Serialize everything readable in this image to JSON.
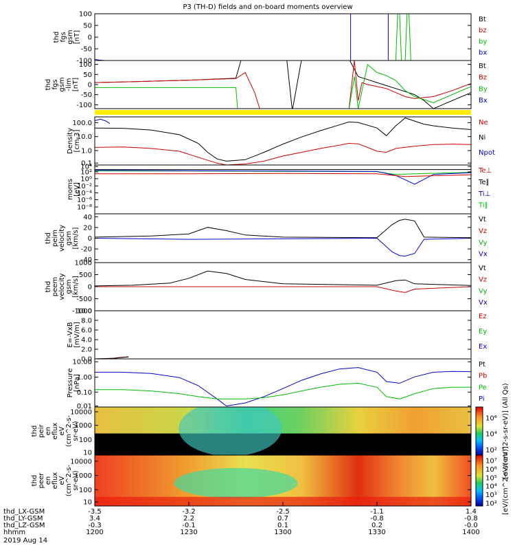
{
  "title": "P3 (TH-D) fields and on-board moments overview",
  "chart_data": [
    {
      "type": "line",
      "id": "fgs",
      "ylabel": [
        "thd",
        "fgs",
        "gsm",
        "[nT]"
      ],
      "ylim": [
        -100,
        100
      ],
      "yticks": [
        "100",
        "50",
        "0",
        "-50",
        "-100"
      ],
      "legend": [
        {
          "name": "Bt",
          "color": "#000000"
        },
        {
          "name": "bz",
          "color": "#cc0000"
        },
        {
          "name": "by",
          "color": "#00bb00"
        },
        {
          "name": "bx",
          "color": "#0000cc"
        }
      ],
      "series": [
        {
          "name": "bx",
          "color": "#0000cc",
          "x": [
            12.0,
            12.02,
            12.05,
            12.3,
            12.6,
            13.0,
            13.2,
            13.3,
            13.35,
            13.36,
            13.36,
            13.5,
            13.55,
            13.56,
            13.56,
            13.9,
            14.0
          ],
          "y": [
            -95,
            -98,
            -100,
            -100,
            -100,
            -100,
            -100,
            -100,
            -100,
            -100,
            100,
            100,
            100,
            100,
            -100,
            -100,
            -100
          ]
        },
        {
          "name": "by",
          "color": "#00bb00",
          "x": [
            13.6,
            13.61,
            13.62,
            13.63,
            13.65,
            13.66,
            13.67,
            13.68,
            13.69,
            13.7
          ],
          "y": [
            -100,
            100,
            100,
            -100,
            -100,
            100,
            100,
            -100,
            -100,
            -100
          ]
        }
      ]
    },
    {
      "type": "line",
      "id": "fgs_lim",
      "ylabel": [
        "thd",
        "fgs",
        "gsm",
        "-lim",
        "[nT]"
      ],
      "ylim": [
        -120,
        120
      ],
      "yticks": [
        "100",
        "50",
        "0",
        "-50",
        "-100"
      ],
      "legend": [
        {
          "name": "Bt",
          "color": "#000000"
        },
        {
          "name": "Bz",
          "color": "#cc0000"
        },
        {
          "name": "By",
          "color": "#00bb00"
        },
        {
          "name": "Bx",
          "color": "#0000cc"
        }
      ],
      "series": [
        {
          "name": "Bt",
          "color": "#000000",
          "x": [
            12.0,
            12.2,
            12.5,
            12.75,
            12.78,
            13.0,
            13.02,
            13.05,
            13.1,
            13.3,
            13.35,
            13.4,
            13.45,
            13.5,
            13.6,
            13.7,
            13.75,
            13.8,
            13.9,
            14.0
          ],
          "y": [
            10,
            14,
            22,
            32,
            130,
            130,
            130,
            -130,
            130,
            130,
            130,
            40,
            25,
            10,
            -20,
            -50,
            -80,
            -120,
            -80,
            -40
          ]
        },
        {
          "name": "Bz",
          "color": "#cc0000",
          "x": [
            12.0,
            12.2,
            12.5,
            12.75,
            12.8,
            12.85,
            12.88,
            13.3,
            13.35,
            13.38,
            13.4,
            13.42,
            13.45,
            13.5,
            13.55,
            13.6,
            13.65,
            13.7,
            13.8,
            13.9,
            14.0
          ],
          "y": [
            10,
            14,
            22,
            30,
            60,
            -40,
            -130,
            -130,
            -130,
            120,
            -80,
            10,
            0,
            -10,
            -20,
            -40,
            -60,
            -70,
            -60,
            -30,
            5
          ]
        },
        {
          "name": "By",
          "color": "#00bb00",
          "x": [
            12.0,
            12.5,
            12.75,
            12.76,
            13.3,
            13.35,
            13.38,
            13.4,
            13.45,
            13.5,
            13.55,
            13.6,
            13.65,
            13.7,
            13.8,
            13.9,
            14.0
          ],
          "y": [
            -15,
            -15,
            -15,
            -130,
            -130,
            -130,
            40,
            -120,
            100,
            60,
            45,
            20,
            -30,
            -60,
            -90,
            -50,
            -10
          ]
        }
      ]
    },
    {
      "type": "line",
      "id": "density",
      "ylabel": [
        "Density",
        "[cm-3]"
      ],
      "scale": "log",
      "ylim": [
        0.05,
        300
      ],
      "yticks": [
        "100.0",
        "10.0",
        "1.0",
        "0.1"
      ],
      "legend": [
        {
          "name": "Ne",
          "color": "#cc0000"
        },
        {
          "name": "Ni",
          "color": "#000000"
        },
        {
          "name": "Npot",
          "color": "#0000cc"
        }
      ],
      "series": [
        {
          "name": "Ni",
          "color": "#000000",
          "x": [
            12.0,
            12.15,
            12.3,
            12.45,
            12.55,
            12.6,
            12.65,
            12.7,
            12.8,
            12.9,
            13.0,
            13.1,
            13.2,
            13.3,
            13.35,
            13.4,
            13.5,
            13.55,
            13.6,
            13.65,
            13.7,
            13.75,
            13.8,
            13.9,
            14.0
          ],
          "y": [
            40,
            38,
            28,
            12,
            2.5,
            0.5,
            0.15,
            0.1,
            0.13,
            0.5,
            2.2,
            8,
            25,
            70,
            120,
            110,
            40,
            10,
            60,
            250,
            140,
            80,
            60,
            40,
            30
          ]
        },
        {
          "name": "Ne",
          "color": "#cc0000",
          "x": [
            12.0,
            12.15,
            12.3,
            12.45,
            12.55,
            12.65,
            12.7,
            12.8,
            12.9,
            13.0,
            13.1,
            13.2,
            13.3,
            13.35,
            13.4,
            13.45,
            13.5,
            13.55,
            13.6,
            13.7,
            13.8,
            13.9,
            14.0
          ],
          "y": [
            1.2,
            1.3,
            1.0,
            0.6,
            0.2,
            0.07,
            0.05,
            0.06,
            0.1,
            0.25,
            0.5,
            1.0,
            1.8,
            2.5,
            2.3,
            1.2,
            0.6,
            0.5,
            1.0,
            1.5,
            2.0,
            2.2,
            2.0
          ]
        },
        {
          "name": "Npot",
          "color": "#0000cc",
          "x": [
            12.0,
            12.03,
            12.06,
            12.08
          ],
          "y": [
            150,
            200,
            140,
            90
          ]
        }
      ]
    },
    {
      "type": "line",
      "id": "moms",
      "ylabel": [
        "moms",
        "[eV]"
      ],
      "scale": "log",
      "ylim": [
        1e-09,
        100000.0
      ],
      "yticks": [
        "10⁴",
        "10²",
        "10⁰",
        "10⁻²",
        "10⁻⁴",
        "10⁻⁶",
        "10⁻⁸"
      ],
      "legend": [
        {
          "name": "Te⊥",
          "color": "#cc0000"
        },
        {
          "name": "Te∥",
          "color": "#000000"
        },
        {
          "name": "Ti⊥",
          "color": "#0000cc"
        },
        {
          "name": "Ti∥",
          "color": "#00bb00"
        }
      ],
      "series": [
        {
          "name": "Ti∥",
          "color": "#00bb00",
          "x": [
            12.0,
            12.5,
            13.0,
            13.5,
            13.6,
            13.7,
            14.0
          ],
          "y": [
            2000,
            1800,
            1500,
            1200,
            200,
            300,
            800
          ]
        },
        {
          "name": "Ti⊥",
          "color": "#0000cc",
          "x": [
            12.0,
            12.5,
            13.0,
            13.5,
            13.6,
            13.7,
            13.8,
            14.0
          ],
          "y": [
            3000,
            2200,
            1800,
            1400,
            100,
            0.3,
            200,
            600
          ]
        },
        {
          "name": "Te⊥",
          "color": "#cc0000",
          "x": [
            12.0,
            12.5,
            13.0,
            13.5,
            13.65,
            14.0
          ],
          "y": [
            300,
            300,
            400,
            300,
            50,
            150
          ]
        },
        {
          "name": "Te∥",
          "color": "#000000",
          "x": [
            12.0,
            12.5,
            13.0,
            13.5,
            14.0
          ],
          "y": [
            5000,
            5000,
            5000,
            5000,
            5000
          ]
        }
      ]
    },
    {
      "type": "line",
      "id": "peim",
      "ylabel": [
        "thd",
        "peim",
        "velocity",
        "gsm",
        "[km/s]"
      ],
      "ylim": [
        -45,
        45
      ],
      "yticks": [
        "40",
        "20",
        "0",
        "-20",
        "-40"
      ],
      "legend": [
        {
          "name": "Vt",
          "color": "#000000"
        },
        {
          "name": "Vz",
          "color": "#cc0000"
        },
        {
          "name": "Vy",
          "color": "#00bb00"
        },
        {
          "name": "Vx",
          "color": "#0000cc"
        }
      ],
      "series": [
        {
          "name": "Vt",
          "color": "#000000",
          "x": [
            12.0,
            12.3,
            12.5,
            12.6,
            12.7,
            12.8,
            13.0,
            13.5,
            13.58,
            13.62,
            13.65,
            13.7,
            13.75,
            14.0
          ],
          "y": [
            2,
            4,
            8,
            20,
            14,
            6,
            2,
            1,
            25,
            33,
            35,
            32,
            2,
            1
          ]
        },
        {
          "name": "Vx",
          "color": "#0000cc",
          "x": [
            12.0,
            12.5,
            13.5,
            13.58,
            13.62,
            13.65,
            13.7,
            13.75,
            14.0
          ],
          "y": [
            0,
            -2,
            0,
            -25,
            -32,
            -33,
            -28,
            -2,
            0
          ]
        }
      ]
    },
    {
      "type": "line",
      "id": "peem",
      "ylabel": [
        "thd",
        "peem",
        "velocity",
        "gsm",
        "[km/s]"
      ],
      "ylim": [
        -1000,
        1000
      ],
      "yticks": [
        "1000",
        "500",
        "0",
        "-500",
        "-1000"
      ],
      "legend": [
        {
          "name": "Vt",
          "color": "#000000"
        },
        {
          "name": "Vz",
          "color": "#cc0000"
        },
        {
          "name": "Vy",
          "color": "#00bb00"
        },
        {
          "name": "Vx",
          "color": "#0000cc"
        }
      ],
      "series": [
        {
          "name": "Vt",
          "color": "#000000",
          "x": [
            12.0,
            12.2,
            12.4,
            12.5,
            12.6,
            12.7,
            12.8,
            13.0,
            13.5,
            13.6,
            13.65,
            13.7,
            14.0
          ],
          "y": [
            30,
            60,
            150,
            350,
            650,
            550,
            300,
            120,
            60,
            250,
            280,
            120,
            50
          ]
        },
        {
          "name": "Vz",
          "color": "#cc0000",
          "x": [
            12.0,
            13.5,
            13.6,
            13.65,
            13.7,
            14.0
          ],
          "y": [
            0,
            0,
            -180,
            -240,
            -100,
            0
          ]
        }
      ]
    },
    {
      "type": "line",
      "id": "efield",
      "ylabel": [
        "E=-VxB",
        "[mV/m]"
      ],
      "ylim": [
        0,
        10
      ],
      "yticks": [
        "10.0",
        "8.0",
        "6.0",
        "4.0",
        "2.0",
        "0.0"
      ],
      "legend": [
        {
          "name": "Ez",
          "color": "#cc0000"
        },
        {
          "name": "Ey",
          "color": "#00bb00"
        },
        {
          "name": "Ex",
          "color": "#0000cc"
        }
      ],
      "series": [
        {
          "name": "Ez",
          "color": "#cc0000",
          "x": [
            12.0,
            12.05,
            12.1,
            12.15,
            12.18
          ],
          "y": [
            0,
            0.05,
            0.15,
            0.35,
            0.45
          ]
        },
        {
          "name": "Ex",
          "color": "#000000",
          "x": [
            12.0,
            12.05,
            12.1,
            12.15,
            12.18
          ],
          "y": [
            0,
            0.05,
            0.12,
            0.3,
            0.4
          ]
        }
      ]
    },
    {
      "type": "line",
      "id": "pressure",
      "ylabel": [
        "Pressure",
        "[nPa]"
      ],
      "scale": "log",
      "ylim": [
        0.005,
        20
      ],
      "yticks": [
        "10.00",
        "1.00",
        "0.10",
        "0.01"
      ],
      "legend": [
        {
          "name": "Pt",
          "color": "#000000"
        },
        {
          "name": "Pb",
          "color": "#cc0000"
        },
        {
          "name": "Pe",
          "color": "#00bb00"
        },
        {
          "name": "Pi",
          "color": "#0000cc"
        }
      ],
      "series": [
        {
          "name": "Pi",
          "color": "#0000cc",
          "x": [
            12.0,
            12.15,
            12.3,
            12.45,
            12.55,
            12.65,
            12.7,
            12.8,
            12.9,
            13.0,
            13.1,
            13.2,
            13.3,
            13.4,
            13.5,
            13.55,
            13.62,
            13.7,
            13.8,
            13.9,
            14.0
          ],
          "y": [
            2.0,
            2.0,
            1.6,
            0.8,
            0.2,
            0.02,
            0.006,
            0.01,
            0.03,
            0.12,
            0.5,
            1.5,
            3.5,
            4.5,
            2.0,
            0.4,
            0.3,
            0.9,
            2.0,
            2.3,
            2.2
          ]
        },
        {
          "name": "Pe",
          "color": "#00bb00",
          "x": [
            12.0,
            12.15,
            12.3,
            12.45,
            12.55,
            12.65,
            12.8,
            12.9,
            13.0,
            13.1,
            13.2,
            13.3,
            13.4,
            13.5,
            13.55,
            13.62,
            13.7,
            13.8,
            13.9,
            14.0
          ],
          "y": [
            0.1,
            0.1,
            0.08,
            0.05,
            0.03,
            0.02,
            0.02,
            0.025,
            0.04,
            0.08,
            0.15,
            0.25,
            0.3,
            0.15,
            0.03,
            0.02,
            0.05,
            0.12,
            0.15,
            0.15
          ]
        }
      ]
    },
    {
      "type": "heatmap",
      "id": "peir",
      "ylabel": [
        "thd",
        "peir",
        "en",
        "eflux",
        "eV",
        "(cm^2-s-",
        "sr-eV)"
      ],
      "scale": "log",
      "yticks": [
        "10000",
        "1000",
        "100",
        "10"
      ],
      "colorbar": {
        "ticks": [
          "10⁶",
          "10⁴",
          "10²"
        ],
        "label": "[eV/(cm^2-s-sr-eV)] (All Qs)"
      }
    },
    {
      "type": "heatmap",
      "id": "peer",
      "ylabel": [
        "thd",
        "peer",
        "en",
        "eflux",
        "eV",
        "(cm^2-s-",
        "sr-eV)"
      ],
      "scale": "log",
      "yticks": [
        "10000",
        "1000",
        "100",
        "10"
      ],
      "colorbar": {
        "ticks": [
          "10⁷",
          "10⁶",
          "10⁵",
          "10⁴",
          "10³",
          "10²"
        ],
        "label": "[eV/(cm^2-s-sr-eV)]"
      }
    }
  ],
  "xaxis": {
    "rows": [
      {
        "label": "thd_LX-GSM",
        "values": [
          "-3.5",
          "-3.2",
          "-2.5",
          "-1.1",
          "1.4"
        ]
      },
      {
        "label": "thd_LY-GSM",
        "values": [
          "3.4",
          "2.2",
          "0.7",
          "-0.8",
          "-0.8"
        ]
      },
      {
        "label": "thd_LZ-GSM",
        "values": [
          "-0.3",
          "-0.1",
          "0.1",
          "0.2",
          "-0.0"
        ]
      },
      {
        "label": "hhmm",
        "values": [
          "1200",
          "1230",
          "1300",
          "1330",
          "1400"
        ]
      }
    ],
    "date": "2019 Aug 14",
    "range": [
      12.0,
      14.0
    ]
  }
}
